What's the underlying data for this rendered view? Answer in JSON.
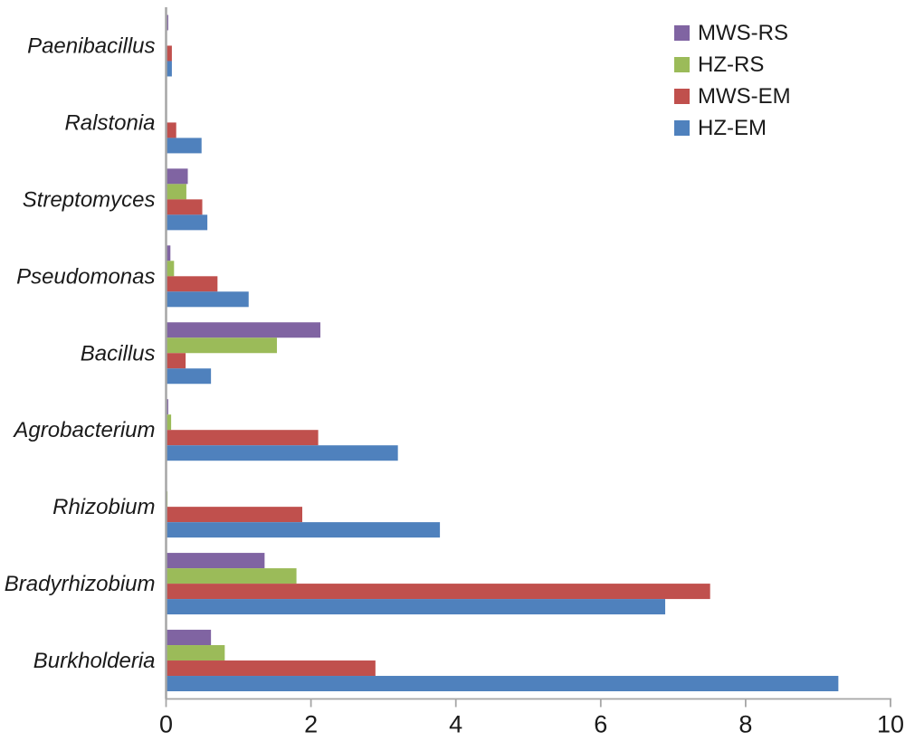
{
  "chart_data": {
    "type": "bar",
    "orientation": "horizontal",
    "title": "",
    "xlabel": "",
    "ylabel": "",
    "grid": false,
    "legend_position": "top-right",
    "category_label_style": "italic",
    "xlim": [
      0,
      10
    ],
    "x_ticks": [
      "0",
      "2",
      "4",
      "6",
      "8",
      "10"
    ],
    "categories": [
      "Paenibacillus",
      "Ralstonia",
      "Streptomyces",
      "Pseudomonas",
      "Bacillus",
      "Agrobacterium",
      "Rhizobium",
      "Bradyrhizobium",
      "Burkholderia"
    ],
    "series": [
      {
        "name": "MWS-RS",
        "color": "#8064A2",
        "values": [
          0.03,
          0.01,
          0.3,
          0.06,
          2.13,
          0.03,
          0.01,
          1.36,
          0.62
        ]
      },
      {
        "name": "HZ-RS",
        "color": "#9BBB59",
        "values": [
          0.01,
          0.01,
          0.28,
          0.11,
          1.53,
          0.07,
          0.02,
          1.8,
          0.81
        ]
      },
      {
        "name": "MWS-EM",
        "color": "#C0504D",
        "values": [
          0.08,
          0.14,
          0.5,
          0.71,
          0.27,
          2.1,
          1.88,
          7.51,
          2.89
        ]
      },
      {
        "name": "HZ-EM",
        "color": "#4F81BD",
        "values": [
          0.08,
          0.49,
          0.57,
          1.14,
          0.62,
          3.2,
          3.78,
          6.89,
          9.28
        ]
      }
    ],
    "colors": {
      "axis": "#A6A6A6",
      "text": "#1a1a1a",
      "background": "#ffffff"
    }
  }
}
